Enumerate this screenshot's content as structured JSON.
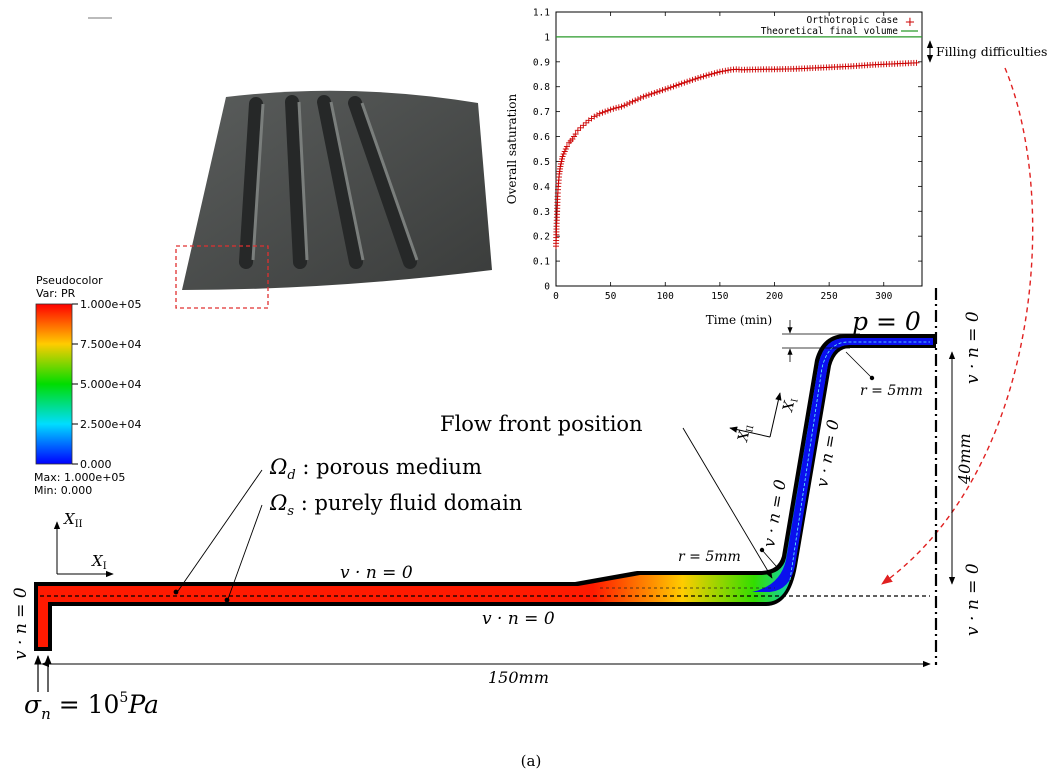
{
  "caption": "(a)",
  "photo": {
    "highlight_color": "#e03030"
  },
  "colorbar": {
    "title": "Pseudocolor",
    "var": "Var: PR",
    "ticks": [
      "1.000e+05",
      "7.500e+04",
      "5.000e+04",
      "2.500e+04",
      "0.000"
    ],
    "max": "Max: 1.000e+05",
    "min": "Min: 0.000"
  },
  "chart_data": {
    "type": "scatter",
    "xlabel": "Time (min)",
    "ylabel": "Overall saturation",
    "xlim": [
      0,
      335
    ],
    "ylim": [
      0,
      1.1
    ],
    "xticks": [
      "0",
      "50",
      "100",
      "150",
      "200",
      "250",
      "300"
    ],
    "yticks": [
      "0",
      "0.1",
      "0.2",
      "0.3",
      "0.4",
      "0.5",
      "0.6",
      "0.7",
      "0.8",
      "0.9",
      "1",
      "1.1"
    ],
    "legend_position": "top-right",
    "grid": false,
    "series": [
      {
        "name": "Orthotropic case",
        "marker": "+",
        "color": "#cc0000",
        "x": [
          0,
          0.5,
          1,
          1.5,
          2,
          3,
          4,
          5,
          6,
          8,
          10,
          12,
          15,
          18,
          20,
          25,
          30,
          35,
          40,
          45,
          50,
          55,
          60,
          70,
          80,
          90,
          100,
          110,
          120,
          130,
          140,
          150,
          160,
          165,
          170,
          180,
          190,
          200,
          210,
          220,
          230,
          240,
          250,
          260,
          270,
          280,
          290,
          300,
          310,
          320,
          330
        ],
        "y": [
          0.16,
          0.24,
          0.3,
          0.36,
          0.4,
          0.45,
          0.48,
          0.5,
          0.52,
          0.54,
          0.56,
          0.575,
          0.59,
          0.61,
          0.625,
          0.645,
          0.665,
          0.68,
          0.692,
          0.7,
          0.708,
          0.715,
          0.72,
          0.74,
          0.76,
          0.775,
          0.79,
          0.805,
          0.82,
          0.835,
          0.848,
          0.86,
          0.868,
          0.87,
          0.868,
          0.869,
          0.87,
          0.87,
          0.871,
          0.872,
          0.874,
          0.876,
          0.878,
          0.88,
          0.882,
          0.885,
          0.888,
          0.89,
          0.892,
          0.894,
          0.896
        ]
      },
      {
        "name": "Theoretical final volume",
        "marker": "line",
        "color": "#2a9a2a",
        "x": [
          0,
          335
        ],
        "y": [
          1,
          1
        ]
      }
    ],
    "annotation": "Filling difficulties"
  },
  "diagram": {
    "p_label": "p = 0",
    "vn_label": "v · n = 0",
    "r_label": "r = 5mm",
    "dim_150": "150mm",
    "dim_40": "40mm",
    "flow_front": "Flow front position",
    "omega_d_sym": "Ω",
    "omega_d_sub": "d",
    "omega_d_text": " : porous medium",
    "omega_s_sym": "Ω",
    "omega_s_sub": "s",
    "omega_s_text": " : purely fluid domain",
    "axis_XI": "X",
    "axis_XI_sub": "I",
    "axis_XII": "X",
    "axis_XII_sub": "II",
    "sigma_sym": "σ",
    "sigma_sub": "n",
    "sigma_eq": " = 10",
    "sigma_exp": "5",
    "sigma_unit": "Pa"
  }
}
